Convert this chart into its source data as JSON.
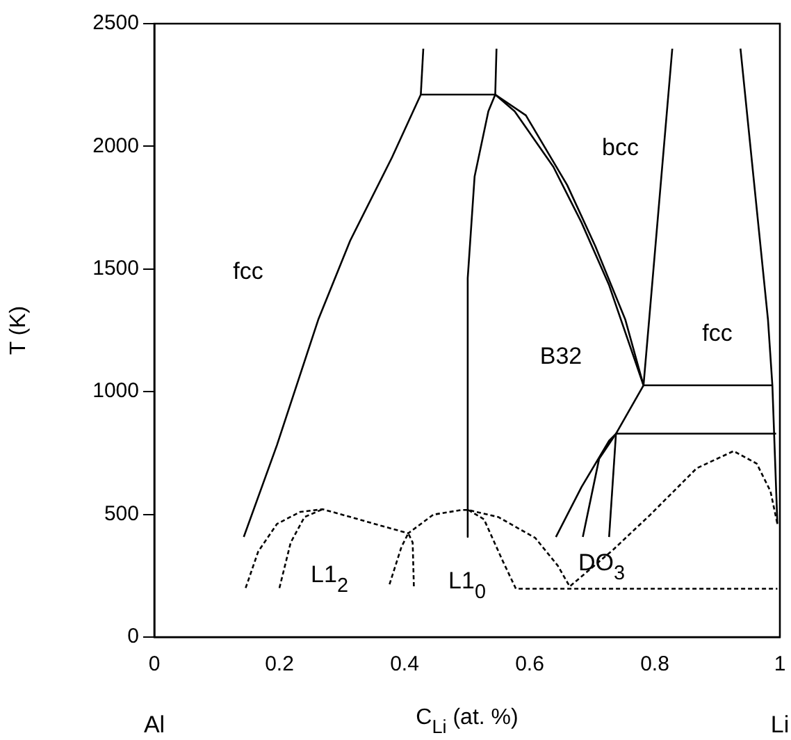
{
  "chart_data": {
    "type": "line",
    "xlabel": "C$_{Li}$ (at. %)",
    "ylabel": "T (K)",
    "xlim": [
      0,
      1
    ],
    "ylim": [
      0,
      2500
    ],
    "xticks": [
      0,
      0.2,
      0.4,
      0.6,
      0.8,
      1
    ],
    "yticks": [
      0,
      500,
      1000,
      1500,
      2000,
      2500
    ],
    "grid": false,
    "legend": false,
    "marker": "none",
    "series": [
      {
        "color": "#000000",
        "line_style": "solid",
        "x": [
          0.143,
          0.196,
          0.262,
          0.313,
          0.38,
          0.426,
          0.545,
          0.547
        ],
        "values": [
          408,
          782,
          1293,
          1615,
          1955,
          2211,
          2211,
          2398
        ]
      },
      {
        "color": "#000000",
        "line_style": "solid",
        "x": [
          0.426,
          0.43
        ],
        "values": [
          2211,
          2398
        ]
      },
      {
        "color": "#000000",
        "line_style": "solid",
        "x": [
          0.545,
          0.534,
          0.512,
          0.501,
          0.501,
          0.501
        ],
        "values": [
          2211,
          2143,
          1877,
          1463,
          1293,
          408
        ]
      },
      {
        "color": "#000000",
        "line_style": "solid",
        "x": [
          0.545,
          0.576,
          0.638,
          0.683,
          0.727,
          0.782
        ],
        "values": [
          2211,
          2143,
          1916,
          1689,
          1434,
          1026
        ]
      },
      {
        "color": "#000000",
        "line_style": "solid",
        "x": [
          0.545,
          0.594,
          0.66,
          0.705,
          0.753,
          0.782
        ],
        "values": [
          2211,
          2126,
          1842,
          1593,
          1293,
          1026
        ]
      },
      {
        "color": "#000000",
        "line_style": "solid",
        "x": [
          0.828,
          0.791,
          0.782,
          0.738,
          0.994
        ],
        "values": [
          2398,
          1293,
          1026,
          829,
          829
        ]
      },
      {
        "color": "#000000",
        "line_style": "solid",
        "x": [
          0.937,
          0.981,
          0.988,
          0.996
        ],
        "values": [
          2398,
          1293,
          1026,
          461
        ]
      },
      {
        "color": "#000000",
        "line_style": "solid",
        "x": [
          0.782,
          0.988
        ],
        "values": [
          1026,
          1026
        ]
      },
      {
        "color": "#000000",
        "line_style": "solid",
        "x": [
          0.642,
          0.683,
          0.727,
          0.738,
          0.711,
          0.685
        ],
        "values": [
          408,
          612,
          800,
          829,
          726,
          408
        ]
      },
      {
        "color": "#000000",
        "line_style": "solid",
        "x": [
          0.738,
          0.727
        ],
        "values": [
          829,
          408
        ]
      },
      {
        "color": "#000000",
        "line_style": "dashed",
        "x": [
          0.146,
          0.166,
          0.196,
          0.233,
          0.269,
          0.321,
          0.365,
          0.406,
          0.446,
          0.491,
          0.502,
          0.55,
          0.609,
          0.645,
          0.664,
          0.734,
          0.793,
          0.867,
          0.926,
          0.963,
          0.985,
          0.996
        ],
        "values": [
          200,
          348,
          461,
          510,
          521,
          484,
          452,
          423,
          499,
          518,
          518,
          489,
          404,
          291,
          206,
          357,
          499,
          688,
          758,
          707,
          594,
          461
        ]
      },
      {
        "color": "#000000",
        "line_style": "dashed",
        "x": [
          0.2,
          0.218,
          0.24,
          0.269
        ],
        "values": [
          200,
          385,
          489,
          521
        ]
      },
      {
        "color": "#000000",
        "line_style": "dashed",
        "x": [
          0.376,
          0.395,
          0.406,
          0.413,
          0.415
        ],
        "values": [
          215,
          367,
          423,
          385,
          200
        ]
      },
      {
        "color": "#000000",
        "line_style": "dashed",
        "x": [
          0.502,
          0.527,
          0.557,
          0.578,
          0.996
        ],
        "values": [
          518,
          480,
          310,
          197,
          197
        ]
      }
    ],
    "annotations": [
      "fcc",
      "bcc",
      "fcc",
      "B32",
      "L1$_{2}$",
      "L1$_{0}$",
      "DO$_{3}$",
      "Al",
      "Li"
    ]
  }
}
